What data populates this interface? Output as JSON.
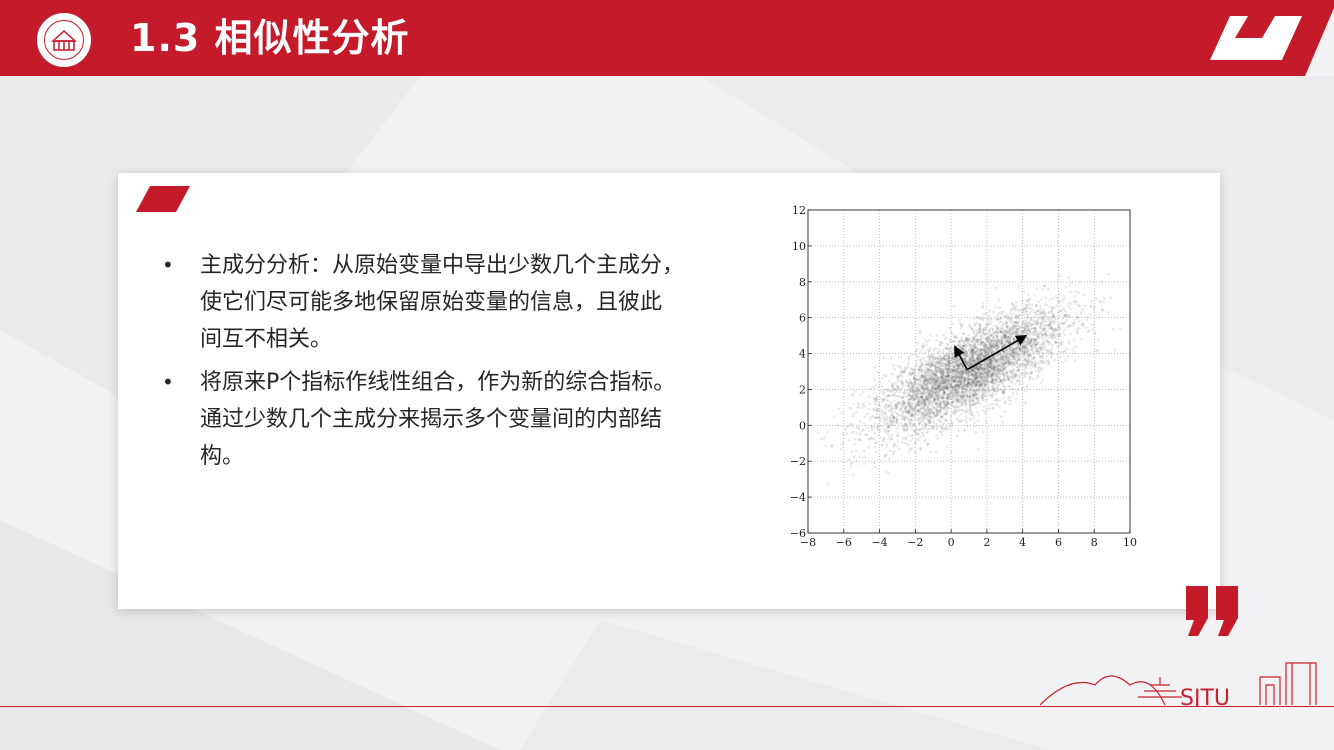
{
  "header": {
    "title": "1.3 相似性分析",
    "logo_icon": "university-seal-icon"
  },
  "content": {
    "bullets": [
      {
        "lines": [
          "主成分分析：从原始变量中导出少数几个主成分，",
          "使它们尽可能多地保留原始变量的信息，且彼此",
          "间互不相关。"
        ]
      },
      {
        "lines": [
          "将原来P个指标作线性组合，作为新的综合指标。",
          "通过少数几个主成分来揭示多个变量间的内部结",
          "构。"
        ]
      }
    ],
    "bullet_symbol": "•"
  },
  "chart_data": {
    "type": "scatter",
    "title": "",
    "xlabel": "",
    "ylabel": "",
    "xlim": [
      -8,
      10
    ],
    "ylim": [
      -6,
      12
    ],
    "xticks": [
      -8,
      -6,
      -4,
      -2,
      0,
      2,
      4,
      6,
      8,
      10
    ],
    "yticks": [
      -6,
      -4,
      -2,
      0,
      2,
      4,
      6,
      8,
      10,
      12
    ],
    "grid": true,
    "point_cloud": {
      "center": [
        1,
        3
      ],
      "principal_axes": [
        {
          "direction": [
            0.866,
            0.5
          ],
          "std": 3
        },
        {
          "direction": [
            -0.5,
            0.866
          ],
          "std": 1
        }
      ],
      "count": 5000
    },
    "arrows": [
      {
        "from": [
          0.9,
          3.1
        ],
        "to": [
          4.2,
          5
        ]
      },
      {
        "from": [
          0.9,
          3.1
        ],
        "to": [
          0.2,
          4.4
        ]
      }
    ]
  },
  "colors": {
    "accent": "#c41a2a",
    "text": "#262626"
  },
  "footer": {
    "brand": "SJTU"
  }
}
